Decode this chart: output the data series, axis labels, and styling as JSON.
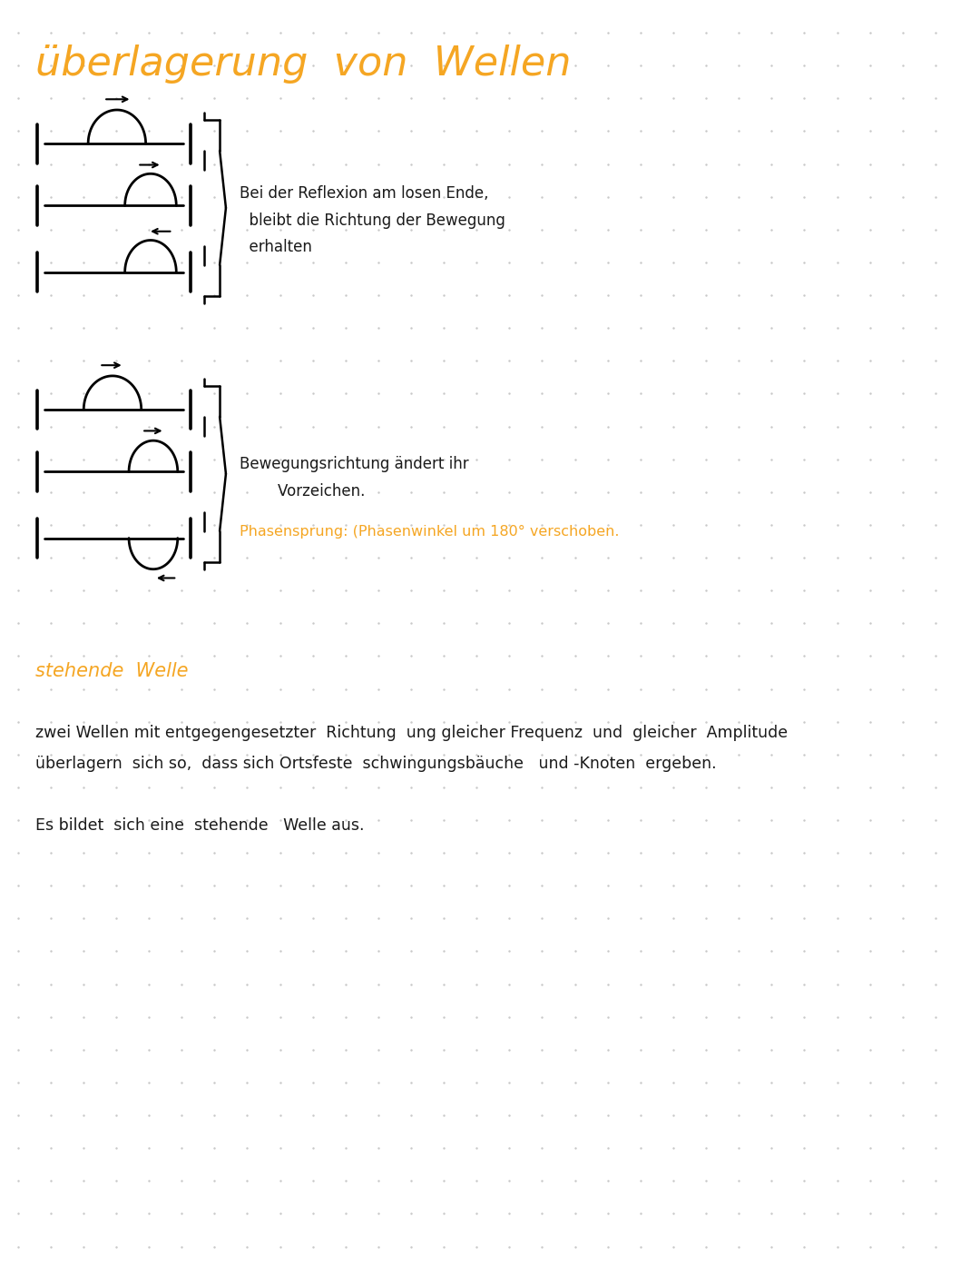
{
  "title": "überlagerung  von  Wellen",
  "title_color": "#F5A623",
  "title_fontsize": 32,
  "bg_color": "#FFFFFF",
  "dot_color": "#C8C8C8",
  "text_color": "#1a1a1a",
  "orange_color": "#F5A623",
  "section1_text_line1": "Bei der Reflexion am losen Ende,",
  "section1_text_line2": "  bleibt die Richtung der Bewegung",
  "section1_text_line3": "  erhalten",
  "section2_text_black_line1": "Bewegungsrichtung ändert ihr",
  "section2_text_black_line2": "        Vorzeichen.",
  "section2_text_orange": "Phasensprung: (Phasenwinkel um 180° verschoben.",
  "stehende_label": "stehende  Welle",
  "paragraph1_line1": "zwei Wellen mit entgegengesetzter  Richtung  ung gleicher Frequenz  und  gleicher  Amplitude",
  "paragraph1_line2": "überlagern  sich so,  dass sich Ortsfeste  schwingungsbäuche   und -Knoten  ergeben.",
  "paragraph2": "Es bildet  sich eine  stehende   Welle aus."
}
